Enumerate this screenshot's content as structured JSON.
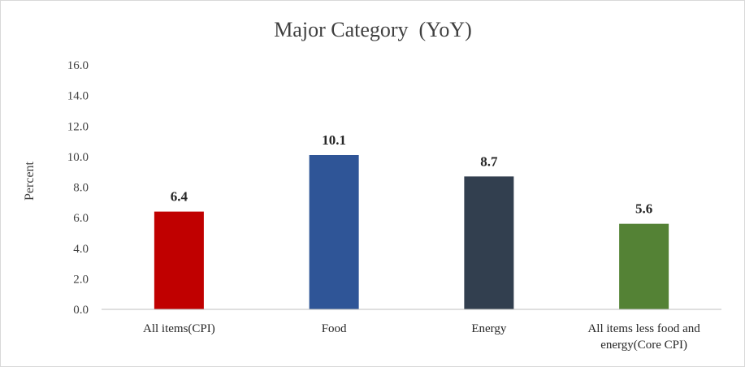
{
  "chart_data": {
    "type": "bar",
    "title": "Major Category  (YoY)",
    "xlabel": "",
    "ylabel": "Percent",
    "ylim": [
      0,
      16
    ],
    "ytick_step": 2,
    "ytick_labels": [
      "0.0",
      "2.0",
      "4.0",
      "6.0",
      "8.0",
      "10.0",
      "12.0",
      "14.0",
      "16.0"
    ],
    "categories": [
      [
        "All items(CPI)"
      ],
      [
        "Food"
      ],
      [
        "Energy"
      ],
      [
        "All items less food and",
        "energy(Core CPI)"
      ]
    ],
    "values": [
      6.4,
      10.1,
      8.7,
      5.6
    ],
    "data_labels": [
      "6.4",
      "10.1",
      "8.7",
      "5.6"
    ],
    "colors": [
      "#c00000",
      "#2f5597",
      "#323f4f",
      "#548235"
    ],
    "axis_color": "#bfbfbf",
    "grid": false,
    "legend": "none"
  }
}
